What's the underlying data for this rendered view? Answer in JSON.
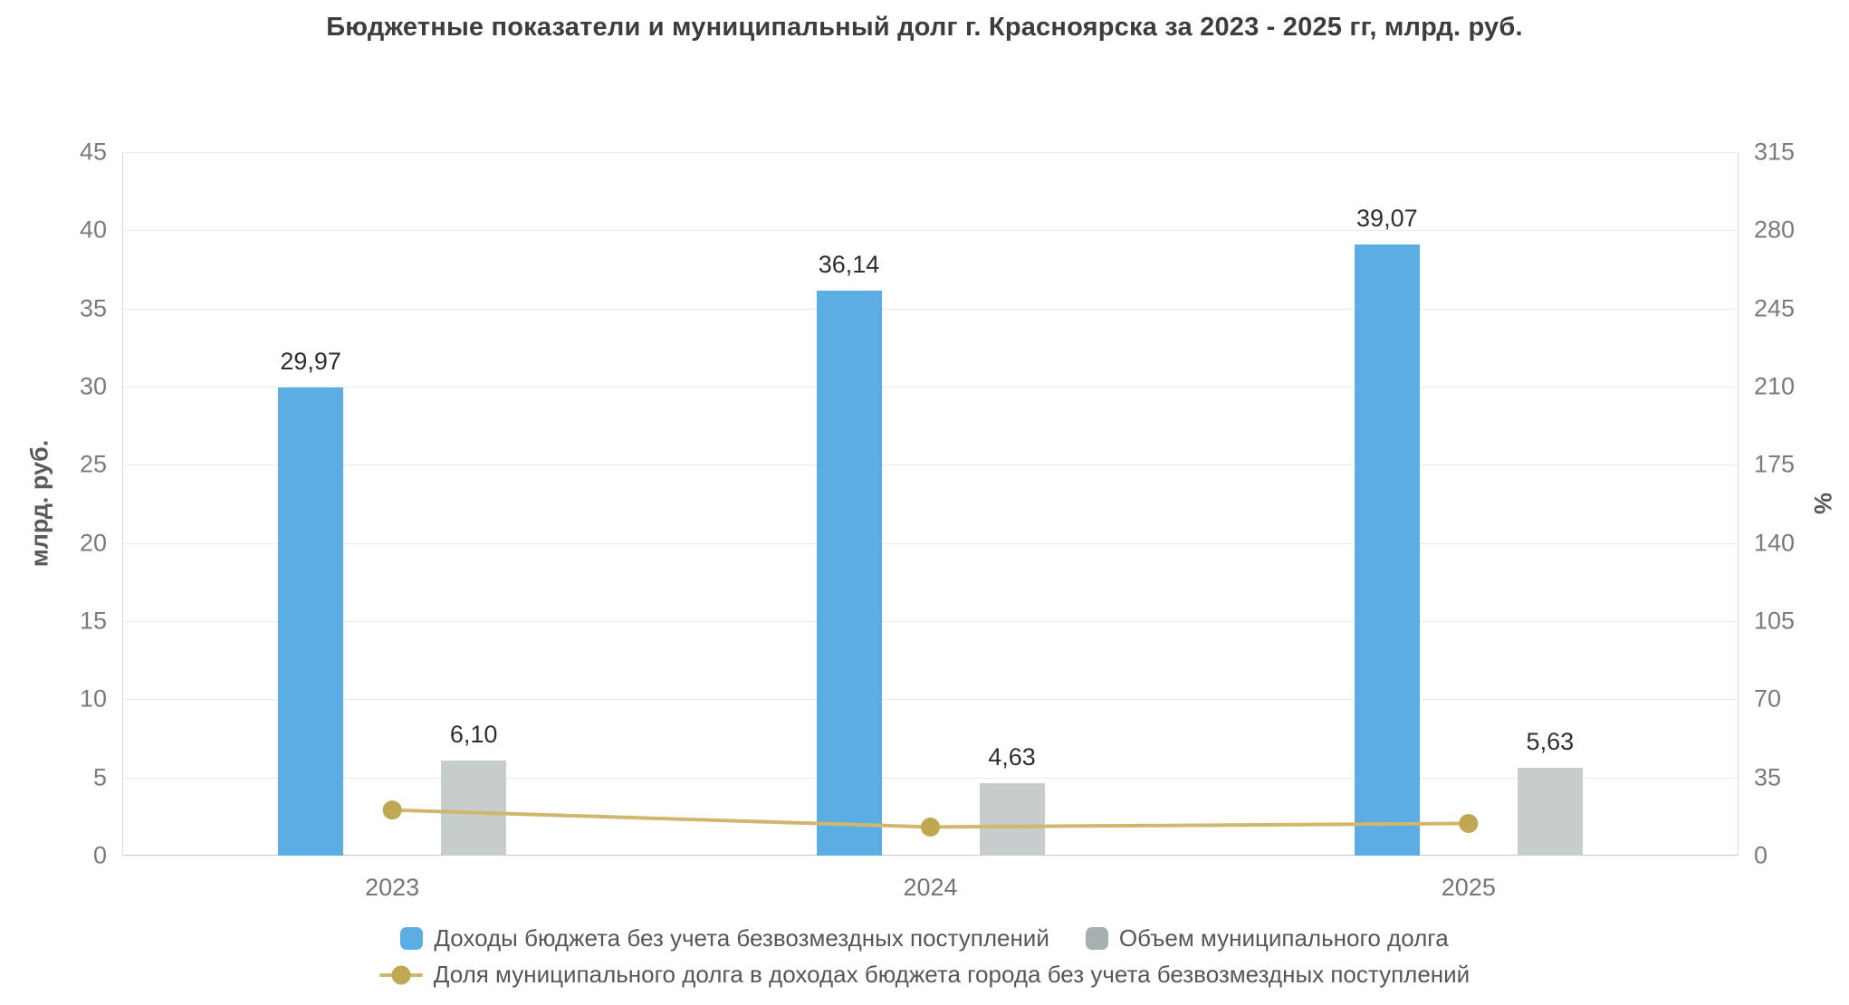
{
  "title": "Бюджетные показатели и муниципальный долг г. Красноярска за 2023 - 2025 гг, млрд. руб.",
  "chart_data": {
    "type": "bar",
    "categories": [
      "2023",
      "2024",
      "2025"
    ],
    "series": [
      {
        "name": "Доходы бюджета без учета безвозмездных поступлений",
        "type": "bar",
        "axis": "left",
        "color": "#5bade4",
        "legend_color": "#5bade4",
        "values": [
          29.97,
          36.14,
          39.07
        ],
        "labels": [
          "29,97",
          "36,14",
          "39,07"
        ]
      },
      {
        "name": "Объем муниципального долга",
        "type": "bar",
        "axis": "left",
        "color": "#c7cccc",
        "legend_color": "#a7b0b0",
        "values": [
          6.1,
          4.63,
          5.63
        ],
        "labels": [
          "6,10",
          "4,63",
          "5,63"
        ]
      },
      {
        "name": "Доля муниципального долга в доходах бюджета города без учета безвозмездных поступлений",
        "type": "line",
        "axis": "right",
        "color": "#cfb76e",
        "marker_color": "#c0a751",
        "values": [
          20.4,
          12.8,
          14.4
        ]
      }
    ],
    "left_axis": {
      "label": "млрд. руб.",
      "min": 0,
      "max": 45,
      "ticks": [
        0,
        5,
        10,
        15,
        20,
        25,
        30,
        35,
        40,
        45
      ]
    },
    "right_axis": {
      "label": "%",
      "min": 0,
      "max": 315,
      "ticks": [
        0,
        35,
        70,
        105,
        140,
        175,
        210,
        245,
        280,
        315
      ]
    },
    "grid": true,
    "legend_position": "bottom"
  }
}
